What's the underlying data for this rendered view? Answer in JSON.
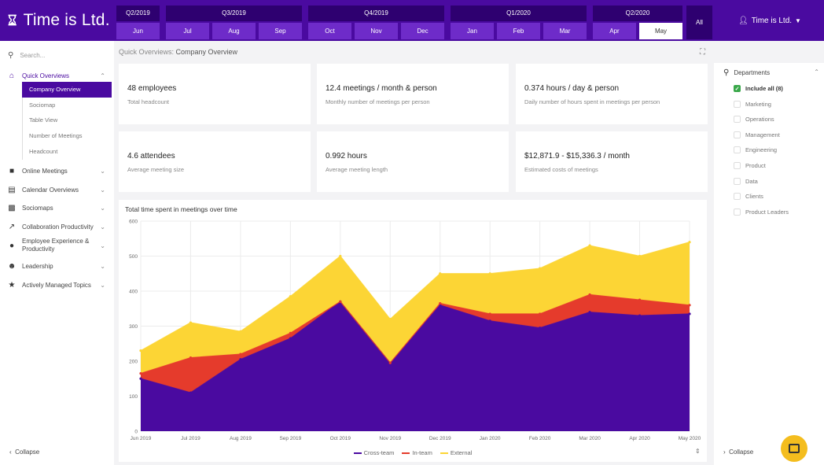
{
  "app": {
    "logo": "Time is Ltd.",
    "user": "Time is Ltd."
  },
  "quarters": [
    {
      "label": "Q2/2019",
      "months": [
        "Jun"
      ]
    },
    {
      "label": "Q3/2019",
      "months": [
        "Jul",
        "Aug",
        "Sep"
      ]
    },
    {
      "label": "Q4/2019",
      "months": [
        "Oct",
        "Nov",
        "Dec"
      ]
    },
    {
      "label": "Q1/2020",
      "months": [
        "Jan",
        "Feb",
        "Mar"
      ]
    },
    {
      "label": "Q2/2020",
      "months": [
        "Apr",
        "May"
      ]
    }
  ],
  "active_month": "May",
  "all_label": "All",
  "sidebar": {
    "search_placeholder": "Search...",
    "quick_overviews": "Quick Overviews",
    "sub_items": [
      "Company Overview",
      "Sociomap",
      "Table View",
      "Number of Meetings",
      "Headcount"
    ],
    "items": [
      "Online Meetings",
      "Calendar Overviews",
      "Sociomaps",
      "Collaboration Productivity",
      "Employee Experience & Productivity",
      "Leadership",
      "Actively Managed Topics"
    ],
    "collapse": "Collapse"
  },
  "breadcrumb": {
    "parent": "Quick Overviews:",
    "current": "Company Overview"
  },
  "cards": [
    {
      "value": "48 employees",
      "label": "Total headcount"
    },
    {
      "value": "12.4 meetings / month & person",
      "label": "Monthly number of meetings per person"
    },
    {
      "value": "0.374 hours / day & person",
      "label": "Daily number of hours spent in meetings per person"
    },
    {
      "value": "4.6 attendees",
      "label": "Average meeting size"
    },
    {
      "value": "0.992 hours",
      "label": "Average meeting length"
    },
    {
      "value": "$12,871.9 - $15,336.3 / month",
      "label": "Estimated costs of meetings"
    }
  ],
  "departments": {
    "header": "Departments",
    "items": [
      "Include all (8)",
      "Marketing",
      "Operations",
      "Management",
      "Engineering",
      "Product",
      "Data",
      "Clients",
      "Product Leaders"
    ],
    "collapse": "Collapse"
  },
  "colors": {
    "brand": "#4a0aa0",
    "cross": "#4a0aa0",
    "inteam": "#e53b2c",
    "external": "#fcd535"
  },
  "chart_data": {
    "type": "area",
    "title": "Total time spent in meetings over time",
    "x": [
      "Jun 2019",
      "Jul 2019",
      "Aug 2019",
      "Sep 2019",
      "Oct 2019",
      "Nov 2019",
      "Dec 2019",
      "Jan 2020",
      "Feb 2020",
      "Mar 2020",
      "Apr 2020",
      "May 2020"
    ],
    "ylim": [
      0,
      600
    ],
    "yticks": [
      0,
      100,
      200,
      300,
      400,
      500,
      600
    ],
    "stacked": true,
    "series": [
      {
        "name": "Cross-team",
        "values": [
          150,
          110,
          205,
          265,
          370,
          195,
          360,
          315,
          295,
          340,
          330,
          335
        ]
      },
      {
        "name": "In-team",
        "values": [
          15,
          100,
          15,
          15,
          0,
          0,
          5,
          20,
          40,
          50,
          45,
          25
        ]
      },
      {
        "name": "External",
        "values": [
          65,
          100,
          65,
          105,
          130,
          125,
          85,
          115,
          130,
          140,
          125,
          180
        ]
      }
    ]
  }
}
